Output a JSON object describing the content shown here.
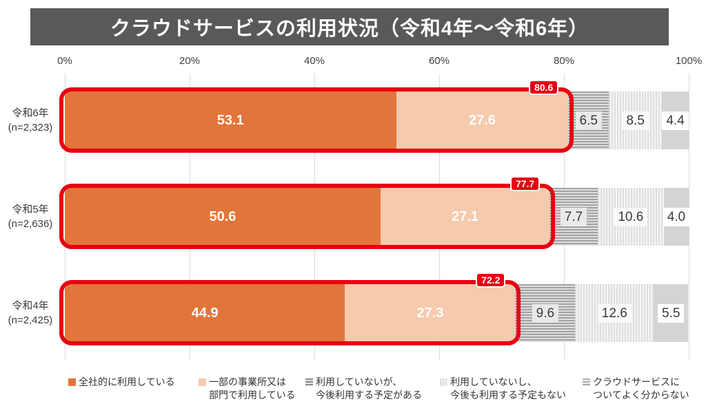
{
  "chart_data": {
    "type": "bar",
    "orientation": "horizontal",
    "stacked": true,
    "title": "クラウドサービスの利用状況（令和4年～令和6年）",
    "xlabel": "",
    "ylabel": "",
    "xlim": [
      0,
      100
    ],
    "x_ticks": [
      "0%",
      "20%",
      "40%",
      "60%",
      "80%",
      "100%"
    ],
    "grid": true,
    "legend_position": "bottom",
    "highlight_color": "#E60012",
    "series": [
      {
        "name": "全社的に利用している",
        "legend_lines": [
          "全社的に利用している"
        ],
        "color": "#E2753B",
        "pattern": "solid"
      },
      {
        "name": "一部の事業所又は部門で利用している",
        "legend_lines": [
          "一部の事業所又は",
          "部門で利用している"
        ],
        "color": "#F6CAAD",
        "pattern": "solid"
      },
      {
        "name": "利用していないが、今後利用する予定がある",
        "legend_lines": [
          "利用していないが、",
          "今後利用する予定がある"
        ],
        "color": "#A5A5A5",
        "pattern": "horizontal-stripes"
      },
      {
        "name": "利用していないし、今後も利用する予定もない",
        "legend_lines": [
          "利用していないし、",
          "今後も利用する予定もない"
        ],
        "color": "#E3E3E3",
        "pattern": "vertical-stripes"
      },
      {
        "name": "クラウドサービスについてよく分からない",
        "legend_lines": [
          "クラウドサービスに",
          "ついてよく分からない"
        ],
        "color": "#D4D4D4",
        "pattern": "solid"
      }
    ],
    "rows": [
      {
        "category": "令和6年",
        "n_label": "(n=2,323)",
        "values": [
          53.1,
          27.6,
          6.5,
          8.5,
          4.4
        ],
        "highlight_total": "80.6"
      },
      {
        "category": "令和5年",
        "n_label": "(n=2,636)",
        "values": [
          50.6,
          27.1,
          7.7,
          10.6,
          4.0
        ],
        "highlight_total": "77.7"
      },
      {
        "category": "令和4年",
        "n_label": "(n=2,425)",
        "values": [
          44.9,
          27.3,
          9.6,
          12.6,
          5.5
        ],
        "highlight_total": "72.2"
      }
    ]
  }
}
